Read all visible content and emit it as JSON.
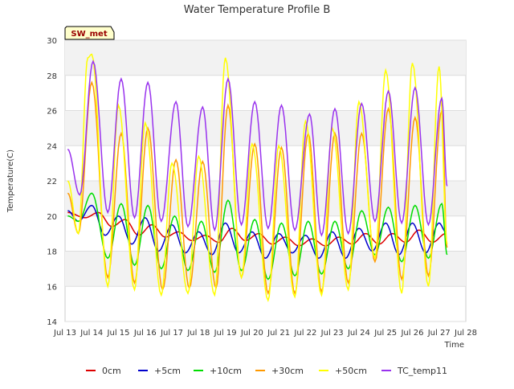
{
  "chart_data": {
    "type": "line",
    "title": "Water Temperature Profile B",
    "xlabel": "Time",
    "ylabel": "Temperature(C)",
    "ylim": [
      14,
      30
    ],
    "xlim": [
      13,
      28
    ],
    "yticks": [
      14,
      16,
      18,
      20,
      22,
      24,
      26,
      28,
      30
    ],
    "xticks": [
      {
        "v": 13,
        "label": "Jul 13"
      },
      {
        "v": 14,
        "label": "Jul 14"
      },
      {
        "v": 15,
        "label": "Jul 15"
      },
      {
        "v": 16,
        "label": "Jul 16"
      },
      {
        "v": 17,
        "label": "Jul 17"
      },
      {
        "v": 18,
        "label": "Jul 18"
      },
      {
        "v": 19,
        "label": "Jul 19"
      },
      {
        "v": 20,
        "label": "Jul 20"
      },
      {
        "v": 21,
        "label": "Jul 21"
      },
      {
        "v": 22,
        "label": "Jul 22"
      },
      {
        "v": 23,
        "label": "Jul 23"
      },
      {
        "v": 24,
        "label": "Jul 24"
      },
      {
        "v": 25,
        "label": "Jul 25"
      },
      {
        "v": 26,
        "label": "Jul 26"
      },
      {
        "v": 27,
        "label": "Jul 27"
      },
      {
        "v": 28,
        "label": "Jul 28"
      }
    ],
    "grid": true,
    "legend_position": "bottom",
    "annotation": "SW_met",
    "series": [
      {
        "name": "0cm",
        "color": "#dd0000",
        "x": [
          13.1,
          13.75,
          14.25,
          14.75,
          15.25,
          15.75,
          16.25,
          16.75,
          17.25,
          17.75,
          18.25,
          18.75,
          19.25,
          19.75,
          20.25,
          20.75,
          21.25,
          21.75,
          22.25,
          22.75,
          23.25,
          23.75,
          24.25,
          24.75,
          25.25,
          25.75,
          26.25,
          26.75,
          27.25
        ],
        "y": [
          20.2,
          19.9,
          20.2,
          19.4,
          19.8,
          18.9,
          19.5,
          18.8,
          19.1,
          18.6,
          18.9,
          18.5,
          19.3,
          18.6,
          19.0,
          18.4,
          18.8,
          18.3,
          18.7,
          18.3,
          18.8,
          18.4,
          19.0,
          18.4,
          19.0,
          18.5,
          19.2,
          18.5,
          19.0
        ]
      },
      {
        "name": "+5cm",
        "color": "#0000cc",
        "x": [
          13.1,
          13.5,
          14.0,
          14.5,
          15.0,
          15.5,
          16.0,
          16.5,
          17.0,
          17.5,
          18.0,
          18.5,
          19.0,
          19.5,
          20.0,
          20.5,
          21.0,
          21.5,
          22.0,
          22.5,
          23.0,
          23.5,
          24.0,
          24.5,
          25.0,
          25.5,
          26.0,
          26.5,
          27.0,
          27.25
        ],
        "y": [
          20.3,
          19.7,
          20.6,
          18.9,
          20.0,
          18.4,
          19.9,
          18.0,
          19.5,
          17.9,
          19.1,
          17.8,
          19.6,
          17.9,
          19.1,
          17.6,
          19.0,
          17.9,
          18.9,
          17.6,
          19.1,
          17.6,
          19.3,
          18.0,
          19.6,
          17.8,
          19.6,
          17.9,
          19.6,
          19.1
        ]
      },
      {
        "name": "+10cm",
        "color": "#00dd00",
        "x": [
          13.1,
          13.5,
          14.0,
          14.6,
          15.1,
          15.6,
          16.1,
          16.6,
          17.1,
          17.6,
          18.1,
          18.6,
          19.1,
          19.6,
          20.1,
          20.6,
          21.1,
          21.6,
          22.1,
          22.6,
          23.1,
          23.6,
          24.1,
          24.6,
          25.1,
          25.6,
          26.1,
          26.6,
          27.1,
          27.3
        ],
        "y": [
          20.0,
          19.7,
          21.3,
          17.6,
          20.7,
          17.2,
          20.6,
          17.0,
          20.0,
          16.9,
          19.7,
          16.8,
          20.9,
          16.9,
          19.8,
          16.4,
          19.6,
          16.6,
          19.7,
          16.7,
          19.7,
          17.0,
          20.3,
          17.8,
          20.5,
          17.4,
          20.6,
          17.6,
          20.7,
          17.8
        ]
      },
      {
        "name": "+30cm",
        "color": "#ff9900",
        "x": [
          13.1,
          13.5,
          14.0,
          14.6,
          15.1,
          15.6,
          16.1,
          16.65,
          17.15,
          17.65,
          18.15,
          18.65,
          19.1,
          19.6,
          20.1,
          20.6,
          21.1,
          21.6,
          22.1,
          22.6,
          23.1,
          23.6,
          24.1,
          24.6,
          25.1,
          25.6,
          26.1,
          26.6,
          27.1,
          27.3
        ],
        "y": [
          21.3,
          19.0,
          27.6,
          16.5,
          24.7,
          16.2,
          25.0,
          15.8,
          23.2,
          15.9,
          23.1,
          15.9,
          26.3,
          16.5,
          24.1,
          15.6,
          23.9,
          15.6,
          24.7,
          15.7,
          24.7,
          16.2,
          24.7,
          17.4,
          26.1,
          16.4,
          25.6,
          16.6,
          26.0,
          18.2
        ]
      },
      {
        "name": "+50cm",
        "color": "#ffff00",
        "x": [
          13.1,
          13.5,
          13.85,
          14.0,
          14.6,
          15.0,
          15.6,
          16.0,
          16.6,
          17.0,
          17.6,
          18.0,
          18.6,
          19.0,
          19.6,
          20.0,
          20.6,
          21.0,
          21.6,
          22.0,
          22.6,
          23.0,
          23.6,
          24.0,
          24.6,
          25.0,
          25.6,
          26.0,
          26.6,
          27.0,
          27.3
        ],
        "y": [
          22.0,
          19.0,
          29.0,
          29.2,
          16.0,
          26.3,
          15.8,
          25.3,
          15.5,
          23.0,
          15.6,
          23.4,
          15.5,
          29.0,
          16.5,
          24.1,
          15.2,
          24.0,
          15.4,
          25.4,
          15.5,
          25.0,
          15.8,
          26.5,
          17.6,
          28.3,
          15.6,
          28.7,
          16.0,
          28.5,
          18.4
        ]
      },
      {
        "name": "TC_temp11",
        "color": "#9933ee",
        "x": [
          13.1,
          13.55,
          14.05,
          14.6,
          15.1,
          15.6,
          16.1,
          16.6,
          17.15,
          17.6,
          18.15,
          18.6,
          19.1,
          19.6,
          20.1,
          20.6,
          21.1,
          21.6,
          22.15,
          22.6,
          23.1,
          23.6,
          24.1,
          24.6,
          25.1,
          25.6,
          26.1,
          26.6,
          27.1,
          27.3
        ],
        "y": [
          23.8,
          21.2,
          28.8,
          20.2,
          27.8,
          19.9,
          27.6,
          19.7,
          26.5,
          19.4,
          26.2,
          19.2,
          27.8,
          19.5,
          26.5,
          19.3,
          26.3,
          19.2,
          25.8,
          18.9,
          26.1,
          19.0,
          26.4,
          19.7,
          27.1,
          19.6,
          27.3,
          19.5,
          26.7,
          21.7
        ]
      }
    ]
  }
}
